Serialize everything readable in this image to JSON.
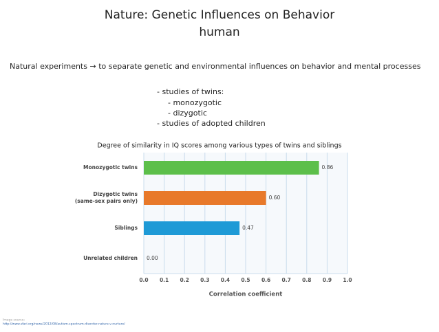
{
  "title": "Nature: Genetic Influences on Behavior",
  "subtitle": "human",
  "intro": "Natural experiments → to separate genetic and environmental influences on behavior and mental processes",
  "bullets": [
    "- studies of twins:",
    "- monozygotic",
    "- dizygotic",
    "- studies of adopted children"
  ],
  "source_label": "Image source:",
  "source_url": "http://www.sfari.org/news/2012/08/autism-spectrum-disorder-nature-v-nurture/",
  "chart_data": {
    "type": "bar",
    "orientation": "horizontal",
    "title": "Degree of similarity in IQ scores among various types of twins and siblings",
    "x_label": "Correlation coefficient",
    "categories": [
      "Monozygotic twins",
      "Dizygotic twins (same-sex pairs only)",
      "Siblings",
      "Unrelated children"
    ],
    "values": [
      0.86,
      0.6,
      0.47,
      0
    ],
    "value_labels": [
      "0.86",
      "0.60",
      "0.47",
      "0.00"
    ],
    "colors": [
      "#5cbf4a",
      "#e8792a",
      "#1e9ad6",
      "#999999"
    ],
    "xlim": [
      0,
      1
    ],
    "xticks": [
      {
        "value": 0,
        "label": "0.0"
      },
      0.1,
      0.2,
      0.3,
      0.4,
      0.5,
      0.6,
      0.7,
      0.8,
      0.9,
      {
        "value": 1,
        "label": "1.0"
      }
    ],
    "grid": true
  }
}
